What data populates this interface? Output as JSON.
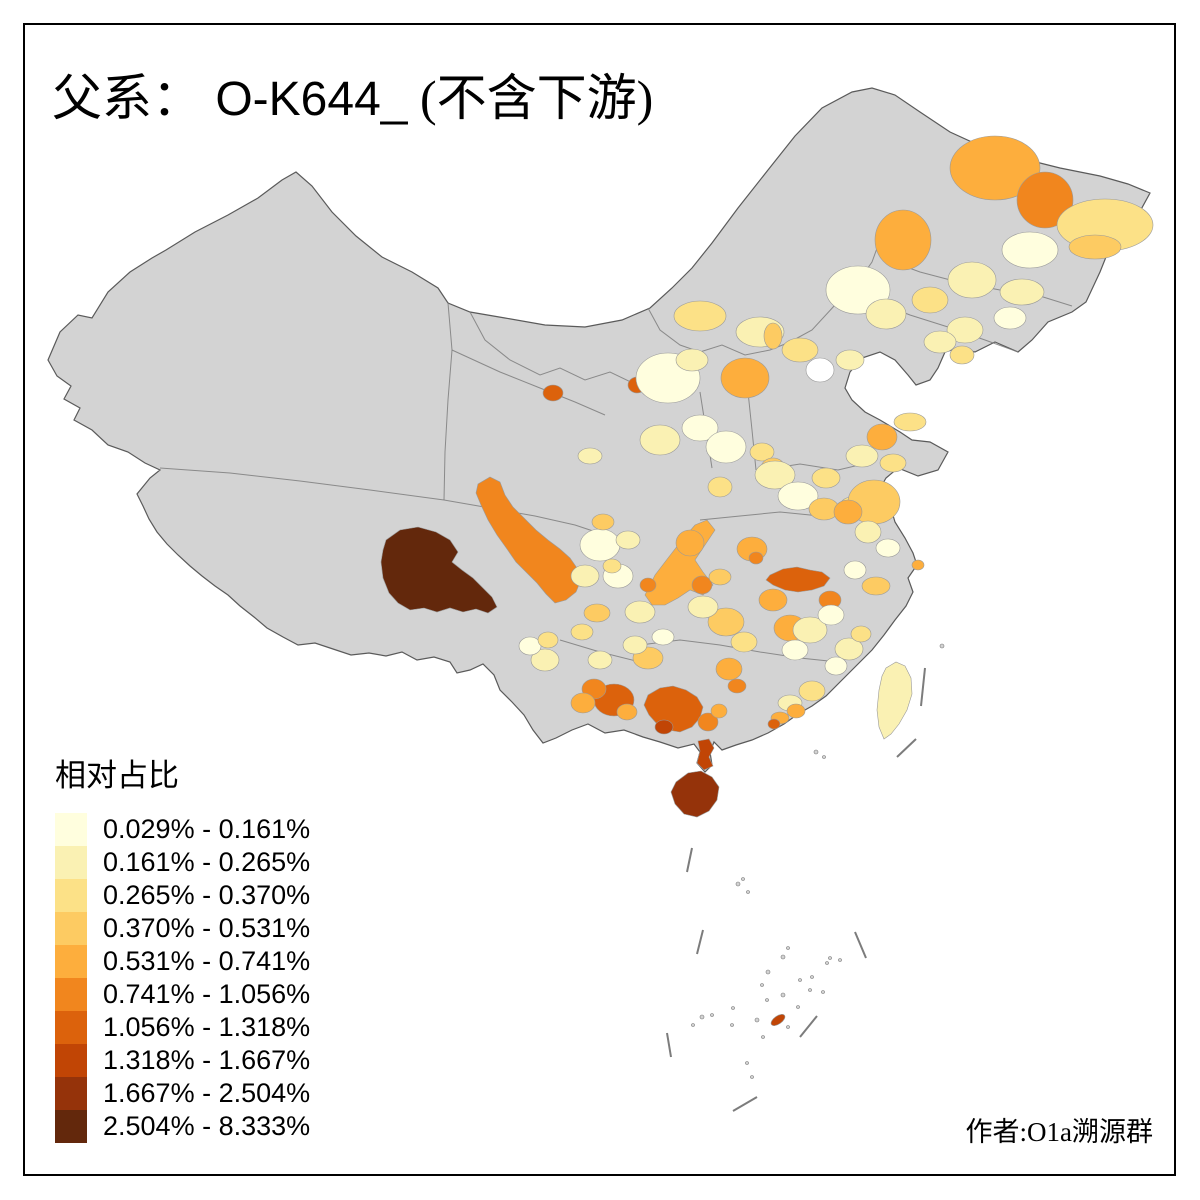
{
  "title": {
    "prefix": "父系：",
    "code": " O-K644_",
    "suffix": " (不含下游)"
  },
  "legend": {
    "title": "相对占比",
    "classes": [
      {
        "label": "0.029% - 0.161%",
        "color": "#FFFEDE"
      },
      {
        "label": "0.161% - 0.265%",
        "color": "#FAF1B3"
      },
      {
        "label": "0.265% - 0.370%",
        "color": "#FCE187"
      },
      {
        "label": "0.370% - 0.531%",
        "color": "#FDCB62"
      },
      {
        "label": "0.531% - 0.741%",
        "color": "#FDAE3D"
      },
      {
        "label": "0.741% - 1.056%",
        "color": "#F1861E"
      },
      {
        "label": "1.056% - 1.318%",
        "color": "#DC620C"
      },
      {
        "label": "1.318% - 1.667%",
        "color": "#C14505"
      },
      {
        "label": "1.667% - 2.504%",
        "color": "#95330A"
      },
      {
        "label": "2.504% - 8.333%",
        "color": "#63280C"
      }
    ]
  },
  "attribution": "作者:O1a溯源群",
  "map": {
    "nodata_color": "#D3D3D3",
    "sea_color": "#FFFFFF",
    "white_value_color": "#FFFFFF",
    "regions": [
      {
        "id": "shannan-tibet",
        "class": 10
      },
      {
        "id": "west-sichuan-band",
        "class": 6
      },
      {
        "id": "chongqing-band",
        "class": 5
      },
      {
        "id": "wuhan-band",
        "class": 7
      },
      {
        "id": "nanning-guangxi",
        "class": 7
      },
      {
        "id": "hainan",
        "class": 9
      },
      {
        "id": "leizhou",
        "class": 8
      },
      {
        "id": "taiwan",
        "class": 2
      },
      {
        "id": "scs-islet",
        "class": 8
      },
      {
        "id": "ne-north-hlj",
        "class": 5
      },
      {
        "id": "ne-hegang",
        "class": 6
      },
      {
        "id": "ne-sanjiang",
        "class": 3
      },
      {
        "id": "ne-jiamusi",
        "class": 4
      },
      {
        "id": "ne-qiqihar",
        "class": 5
      },
      {
        "id": "ne-suihua",
        "class": 2
      },
      {
        "id": "ne-harbin",
        "class": 1
      },
      {
        "id": "ne-mudanjiang",
        "class": 2
      },
      {
        "id": "im-xingan",
        "class": 1
      },
      {
        "id": "im-tongliao",
        "class": 2
      },
      {
        "id": "jl-changchun",
        "class": 3
      },
      {
        "id": "jl-jilin",
        "class": 2
      },
      {
        "id": "jl-east",
        "class": 1
      },
      {
        "id": "ln-shenyang",
        "class": 2
      },
      {
        "id": "ln-dandong",
        "class": 3
      },
      {
        "id": "im-chifeng",
        "class": 2
      },
      {
        "id": "he-chengde",
        "class": 3
      },
      {
        "id": "im-bayannur",
        "class": 3
      },
      {
        "id": "gs-jiayuguan",
        "class": 7
      },
      {
        "id": "nx-shizuishan",
        "class": 7
      },
      {
        "id": "im-ordos-pale",
        "class": 1
      },
      {
        "id": "im-wuhai",
        "class": 2
      },
      {
        "id": "sn-yulin",
        "class": 5
      },
      {
        "id": "im-east-wedge",
        "class": 4
      },
      {
        "id": "nx-guyuan",
        "class": 2
      },
      {
        "id": "sx-north",
        "class": 1
      },
      {
        "id": "sx-linfen",
        "class": 1
      },
      {
        "id": "qh-xining",
        "class": 2
      },
      {
        "id": "hn-anyang",
        "class": 3
      },
      {
        "id": "hn-luoyang",
        "class": 4
      },
      {
        "id": "hn-sanmenxia",
        "class": 3
      },
      {
        "id": "beijing-white",
        "class": 0
      },
      {
        "id": "he-langfang",
        "class": 2
      },
      {
        "id": "sd-qingdao",
        "class": 5
      },
      {
        "id": "sd-yantai",
        "class": 3
      },
      {
        "id": "sd-heze",
        "class": 2
      },
      {
        "id": "sd-linyi",
        "class": 3
      },
      {
        "id": "hn-kaifeng",
        "class": 2
      },
      {
        "id": "hn-zhoukou",
        "class": 1
      },
      {
        "id": "hn-shangqiu",
        "class": 3
      },
      {
        "id": "ah-huaibei",
        "class": 4
      },
      {
        "id": "ah-suzhou",
        "class": 3
      },
      {
        "id": "hn-nanyang",
        "class": 5
      },
      {
        "id": "hb-xiangyang",
        "class": 5
      },
      {
        "id": "hb-xiangyang-core",
        "class": 6
      },
      {
        "id": "js-north",
        "class": 4
      },
      {
        "id": "js-huaian",
        "class": 5
      },
      {
        "id": "ah-chuzhou",
        "class": 2
      },
      {
        "id": "shanghai",
        "class": 5
      },
      {
        "id": "js-nantong",
        "class": 1
      },
      {
        "id": "hb-jingzhou",
        "class": 5
      },
      {
        "id": "hb-south",
        "class": 5
      },
      {
        "id": "hb-huanggang",
        "class": 6
      },
      {
        "id": "hb-enshi",
        "class": 6
      },
      {
        "id": "hb-yichang",
        "class": 4
      },
      {
        "id": "hun-yiyang",
        "class": 4
      },
      {
        "id": "hun-west",
        "class": 2
      },
      {
        "id": "hun-hengyang",
        "class": 3
      },
      {
        "id": "hun-chenzhou",
        "class": 5
      },
      {
        "id": "hun-south",
        "class": 6
      },
      {
        "id": "jx-nanchang",
        "class": 2
      },
      {
        "id": "jx-ganzhou",
        "class": 1
      },
      {
        "id": "jx-east",
        "class": 1
      },
      {
        "id": "zj-jinhua",
        "class": 4
      },
      {
        "id": "zj-north",
        "class": 1
      },
      {
        "id": "fj-sanming",
        "class": 2
      },
      {
        "id": "fj-longyan",
        "class": 1
      },
      {
        "id": "fj-nanping",
        "class": 3
      },
      {
        "id": "gd-meizhou",
        "class": 3
      },
      {
        "id": "gd-qingyuan",
        "class": 2
      },
      {
        "id": "gd-guangzhou",
        "class": 5
      },
      {
        "id": "gd-foshan",
        "class": 7
      },
      {
        "id": "gd-zhaoqing",
        "class": 5
      },
      {
        "id": "gd-zhanjiang-north",
        "class": 6
      },
      {
        "id": "gx-yulin",
        "class": 5
      },
      {
        "id": "gx-chongzuo",
        "class": 8
      },
      {
        "id": "gx-baise",
        "class": 7
      },
      {
        "id": "gz-southwest",
        "class": 6
      },
      {
        "id": "gx-hechi",
        "class": 5
      },
      {
        "id": "yn-wenshan",
        "class": 5
      },
      {
        "id": "yn-kunming",
        "class": 2
      },
      {
        "id": "yn-chuxiong",
        "class": 1
      },
      {
        "id": "yn-panzhihua",
        "class": 3
      },
      {
        "id": "yn-qujing",
        "class": 2
      },
      {
        "id": "gz-anshun",
        "class": 4
      },
      {
        "id": "gz-bijie",
        "class": 2
      },
      {
        "id": "gz-zunyi",
        "class": 1
      },
      {
        "id": "sc-chengdu",
        "class": 1
      },
      {
        "id": "sc-meishan",
        "class": 2
      },
      {
        "id": "sc-neijiang",
        "class": 1
      },
      {
        "id": "sc-zigong",
        "class": 3
      },
      {
        "id": "sc-mianyang",
        "class": 4
      },
      {
        "id": "sc-luzhou",
        "class": 2
      },
      {
        "id": "sc-yibin",
        "class": 4
      },
      {
        "id": "sc-liangshan",
        "class": 3
      },
      {
        "id": "cq-core",
        "class": 6
      },
      {
        "id": "sc-nanchong",
        "class": 2
      }
    ]
  },
  "chart_data": {
    "type": "heatmap",
    "title": "父系： O-K644_ (不含下游)",
    "legend_title": "相对占比",
    "legend_position": "bottom-left",
    "bins": [
      "0.029% - 0.161%",
      "0.161% - 0.265%",
      "0.265% - 0.370%",
      "0.370% - 0.531%",
      "0.531% - 0.741%",
      "0.741% - 1.056%",
      "1.056% - 1.318%",
      "1.318% - 1.667%",
      "1.667% - 2.504%",
      "2.504% - 8.333%"
    ],
    "bin_colors": [
      "#FFFEDE",
      "#FAF1B3",
      "#FCE187",
      "#FDCB62",
      "#FDAE3D",
      "#F1861E",
      "#DC620C",
      "#C14505",
      "#95330A",
      "#63280C"
    ],
    "notable_values": {
      "山南(西藏)": "2.504%-8.333%",
      "海南岛": "1.667%-2.504%",
      "湛江(雷州)": "1.318%-1.667%",
      "南宁(广西)": "1.056%-1.318%",
      "武汉一带": "1.056%-1.318%",
      "川西(甘孜)": "0.741%-1.056%",
      "黑龙江北部": "0.531%-0.741%",
      "台湾": "0.161%-0.265%",
      "无数据": "灰色"
    }
  }
}
